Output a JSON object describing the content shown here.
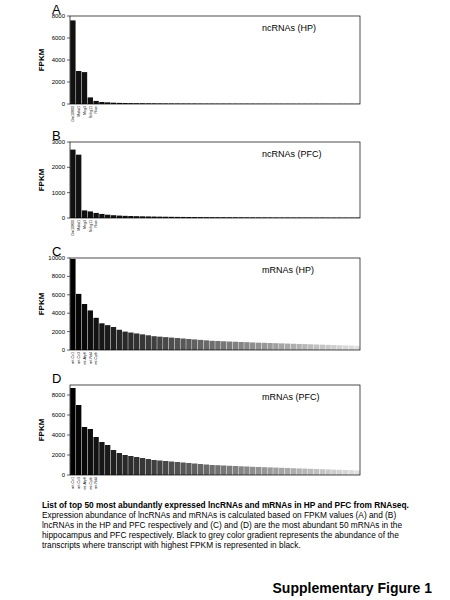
{
  "chart_data": [
    {
      "type": "bar",
      "title": "ncRNAs (HP)",
      "annotations": [
        "A"
      ],
      "y_label": "FPKM",
      "categories": [
        "Gm10800",
        "Malat1",
        "Meg3",
        "Snhg11",
        "Rian",
        null,
        null,
        null,
        null,
        null,
        null,
        null,
        null,
        null,
        null,
        null,
        null,
        null,
        null,
        null,
        null,
        null,
        null,
        null,
        null,
        null,
        null,
        null,
        null,
        null,
        null,
        null,
        null,
        null,
        null,
        null,
        null,
        null,
        null,
        null,
        null,
        null,
        null,
        null,
        null,
        null,
        null,
        null,
        null,
        null
      ],
      "values": [
        7600,
        3000,
        2900,
        600,
        280,
        180,
        150,
        120,
        100,
        90,
        80,
        75,
        70,
        65,
        60,
        56,
        52,
        49,
        46,
        44,
        42,
        40,
        38,
        36,
        35,
        34,
        33,
        32,
        31,
        30,
        29,
        28,
        27,
        26,
        25,
        24,
        23,
        22,
        21,
        20,
        20,
        19,
        19,
        18,
        18,
        17,
        17,
        16,
        16,
        15
      ],
      "color": "#111111",
      "ylim": [
        0,
        8000
      ],
      "yticks": [
        0,
        2000,
        4000,
        6000,
        8000
      ],
      "grid": false
    },
    {
      "type": "bar",
      "title": "ncRNAs (PFC)",
      "annotations": [
        "B"
      ],
      "y_label": "FPKM",
      "categories": [
        "Gm10800",
        "Malat1",
        "Meg3",
        "Snhg11",
        "Rian",
        null,
        null,
        null,
        null,
        null,
        null,
        null,
        null,
        null,
        null,
        null,
        null,
        null,
        null,
        null,
        null,
        null,
        null,
        null,
        null,
        null,
        null,
        null,
        null,
        null,
        null,
        null,
        null,
        null,
        null,
        null,
        null,
        null,
        null,
        null,
        null,
        null,
        null,
        null,
        null,
        null,
        null,
        null,
        null,
        null
      ],
      "values": [
        2700,
        2500,
        300,
        260,
        200,
        160,
        130,
        110,
        95,
        85,
        78,
        72,
        66,
        61,
        57,
        53,
        50,
        47,
        44,
        42,
        40,
        38,
        36,
        34,
        33,
        32,
        31,
        30,
        29,
        28,
        27,
        26,
        25,
        24,
        23,
        22,
        21,
        21,
        20,
        20,
        19,
        19,
        18,
        18,
        17,
        17,
        16,
        16,
        15,
        15
      ],
      "color": "#111111",
      "ylim": [
        0,
        3000
      ],
      "yticks": [
        0,
        1000,
        2000,
        3000
      ],
      "grid": false
    },
    {
      "type": "bar",
      "title": "mRNAs (HP)",
      "annotations": [
        "C"
      ],
      "y_label": "FPKM",
      "categories": [
        "mt-Co1",
        "mt-Co3",
        "mt-Atp6",
        "mt-Nd4",
        "mt-Cytb",
        null,
        null,
        null,
        null,
        null,
        null,
        null,
        null,
        null,
        null,
        null,
        null,
        null,
        null,
        null,
        null,
        null,
        null,
        null,
        null,
        null,
        null,
        null,
        null,
        null,
        null,
        null,
        null,
        null,
        null,
        null,
        null,
        null,
        null,
        null,
        null,
        null,
        null,
        null,
        null,
        null,
        null,
        null,
        null,
        null
      ],
      "values": [
        9900,
        6100,
        5000,
        4300,
        3500,
        2900,
        2700,
        2500,
        2200,
        2000,
        1900,
        1800,
        1700,
        1600,
        1500,
        1450,
        1400,
        1350,
        1300,
        1250,
        1200,
        1150,
        1100,
        1050,
        1000,
        980,
        950,
        920,
        900,
        870,
        850,
        820,
        800,
        780,
        760,
        740,
        720,
        700,
        680,
        660,
        640,
        620,
        600,
        580,
        560,
        540,
        520,
        500,
        480,
        460
      ],
      "colors": [
        "#000000",
        "#050505",
        "#090909",
        "#0e0e0e",
        "#121212",
        "#171717",
        "#1b1b1b",
        "#202020",
        "#252525",
        "#292929",
        "#2e2e2e",
        "#323232",
        "#373737",
        "#3b3b3b",
        "#404040",
        "#454545",
        "#494949",
        "#4e4e4e",
        "#525252",
        "#575757",
        "#5b5b5b",
        "#606060",
        "#656565",
        "#696969",
        "#6e6e6e",
        "#727272",
        "#777777",
        "#7b7b7b",
        "#808080",
        "#858585",
        "#898989",
        "#8e8e8e",
        "#929292",
        "#979797",
        "#9b9b9b",
        "#a0a0a0",
        "#a5a5a5",
        "#a9a9a9",
        "#aeaeae",
        "#b2b2b2",
        "#b7b7b7",
        "#bbbbbb",
        "#c0c0c0",
        "#c5c5c5",
        "#c9c9c9",
        "#cecece",
        "#d2d2d2",
        "#d7d7d7",
        "#dbdbdb",
        "#e0e0e0"
      ],
      "ylim": [
        0,
        10000
      ],
      "yticks": [
        0,
        2000,
        4000,
        6000,
        8000,
        10000
      ],
      "grid": false
    },
    {
      "type": "bar",
      "title": "mRNAs (PFC)",
      "annotations": [
        "D"
      ],
      "y_label": "FPKM",
      "categories": [
        "mt-Co1",
        "mt-Co3",
        "mt-Atp6",
        "mt-Cytb",
        "mt-Nd4",
        null,
        null,
        null,
        null,
        null,
        null,
        null,
        null,
        null,
        null,
        null,
        null,
        null,
        null,
        null,
        null,
        null,
        null,
        null,
        null,
        null,
        null,
        null,
        null,
        null,
        null,
        null,
        null,
        null,
        null,
        null,
        null,
        null,
        null,
        null,
        null,
        null,
        null,
        null,
        null,
        null,
        null,
        null,
        null,
        null
      ],
      "values": [
        8700,
        7000,
        4800,
        4600,
        3800,
        3300,
        3000,
        2500,
        2200,
        2000,
        1900,
        1800,
        1700,
        1600,
        1500,
        1450,
        1400,
        1350,
        1300,
        1250,
        1200,
        1150,
        1100,
        1050,
        1000,
        980,
        950,
        920,
        900,
        870,
        850,
        820,
        800,
        780,
        760,
        740,
        720,
        700,
        680,
        660,
        640,
        620,
        600,
        580,
        560,
        540,
        520,
        500,
        480,
        460
      ],
      "colors": [
        "#000000",
        "#050505",
        "#090909",
        "#0e0e0e",
        "#121212",
        "#171717",
        "#1b1b1b",
        "#202020",
        "#252525",
        "#292929",
        "#2e2e2e",
        "#323232",
        "#373737",
        "#3b3b3b",
        "#404040",
        "#454545",
        "#494949",
        "#4e4e4e",
        "#525252",
        "#575757",
        "#5b5b5b",
        "#606060",
        "#656565",
        "#696969",
        "#6e6e6e",
        "#727272",
        "#777777",
        "#7b7b7b",
        "#808080",
        "#858585",
        "#898989",
        "#8e8e8e",
        "#929292",
        "#979797",
        "#9b9b9b",
        "#a0a0a0",
        "#a5a5a5",
        "#a9a9a9",
        "#aeaeae",
        "#b2b2b2",
        "#b7b7b7",
        "#bbbbbb",
        "#c0c0c0",
        "#c5c5c5",
        "#c9c9c9",
        "#cecece",
        "#d2d2d2",
        "#d7d7d7",
        "#dbdbdb",
        "#e0e0e0"
      ],
      "ylim": [
        0,
        9000
      ],
      "yticks": [
        0,
        2000,
        4000,
        6000,
        8000
      ],
      "grid": false
    }
  ],
  "caption": {
    "title": "List of top 50 most abundantly expressed lncRNAs and mRNAs in HP and PFC from RNAseq.",
    "text": "Expression abundance of lncRNAs and mRNAs is calculated based on FPKM values (A) and (B) lncRNAs in the HP and PFC respectively and (C) and (D) are the most abundant 50 mRNAs in the hippocampus and PFC respectively. Black to grey color gradient represents the abundance of the transcripts where transcript with highest FPKM is represented in black."
  },
  "figure_label": "Supplementary Figure 1"
}
